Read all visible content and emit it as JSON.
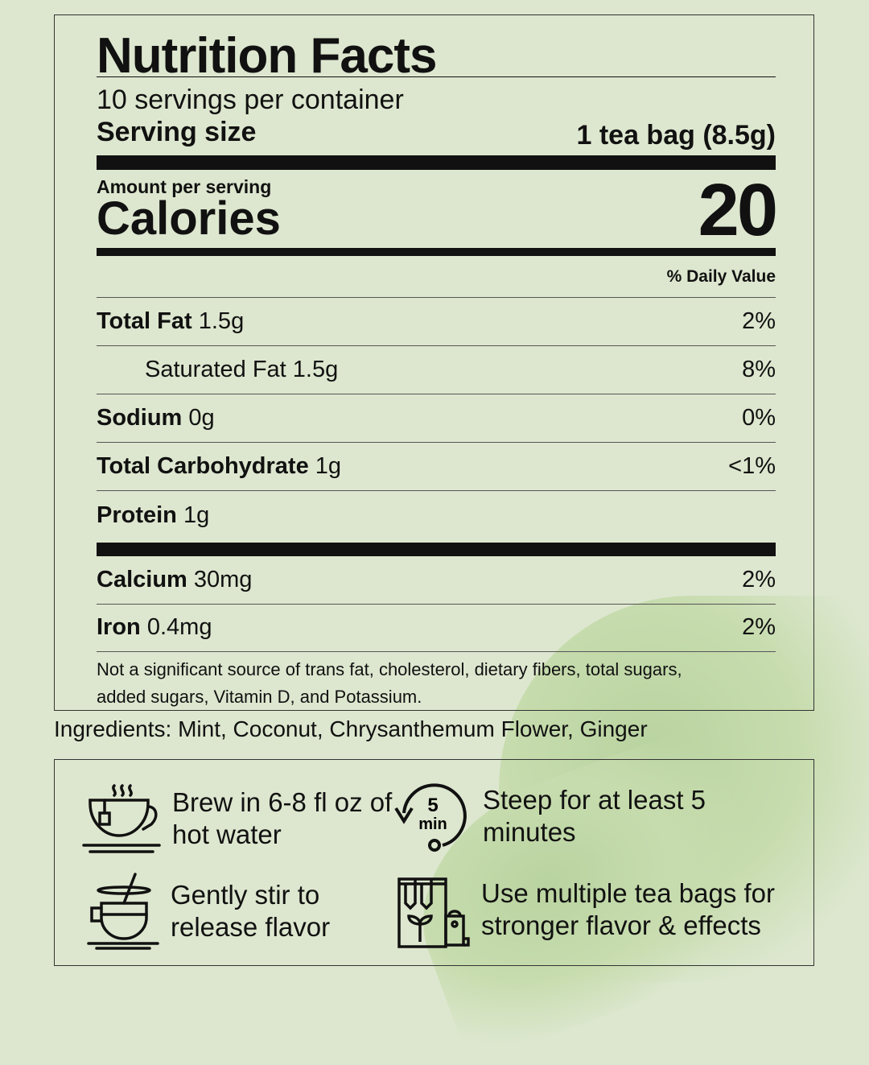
{
  "label": {
    "title": "Nutrition Facts",
    "servings_per_container": "10 servings per container",
    "serving_size_label": "Serving size",
    "serving_size_value": "1 tea bag (8.5g)",
    "amount_per_serving": "Amount per serving",
    "calories_label": "Calories",
    "calories_value": "20",
    "daily_value_header": "% Daily Value",
    "nutrients": [
      {
        "name": "Total Fat",
        "amount": "1.5g",
        "dv": "2%"
      },
      {
        "name": "Saturated Fat",
        "amount": "1.5g",
        "dv": "8%"
      },
      {
        "name": "Sodium",
        "amount": "0g",
        "dv": "0%"
      },
      {
        "name": "Total Carbohydrate",
        "amount": "1g",
        "dv": "<1%"
      },
      {
        "name": "Protein",
        "amount": "1g",
        "dv": ""
      }
    ],
    "minerals": [
      {
        "name": "Calcium",
        "amount": "30mg",
        "dv": "2%"
      },
      {
        "name": "Iron",
        "amount": "0.4mg",
        "dv": "2%"
      }
    ],
    "footnote": "Not a significant source of trans fat, cholesterol, dietary fibers, total sugars, added sugars, Vitamin D, and Potassium."
  },
  "ingredients": "Ingredients: Mint, Coconut, Chrysanthemum Flower, Ginger",
  "instructions": [
    {
      "icon": "teacup-icon",
      "text": "Brew in 6-8 fl oz of hot water"
    },
    {
      "icon": "timer-5-min-icon",
      "text": "Steep for at least 5 minutes",
      "timer_number": "5",
      "timer_unit": "min"
    },
    {
      "icon": "stirring-cup-icon",
      "text": "Gently stir to release flavor"
    },
    {
      "icon": "tea-bags-icon",
      "text": "Use multiple tea bags for stronger flavor & effects"
    }
  ],
  "colors": {
    "background": "#dde7cf",
    "text": "#111111",
    "leaf": "#b9d3a0"
  }
}
